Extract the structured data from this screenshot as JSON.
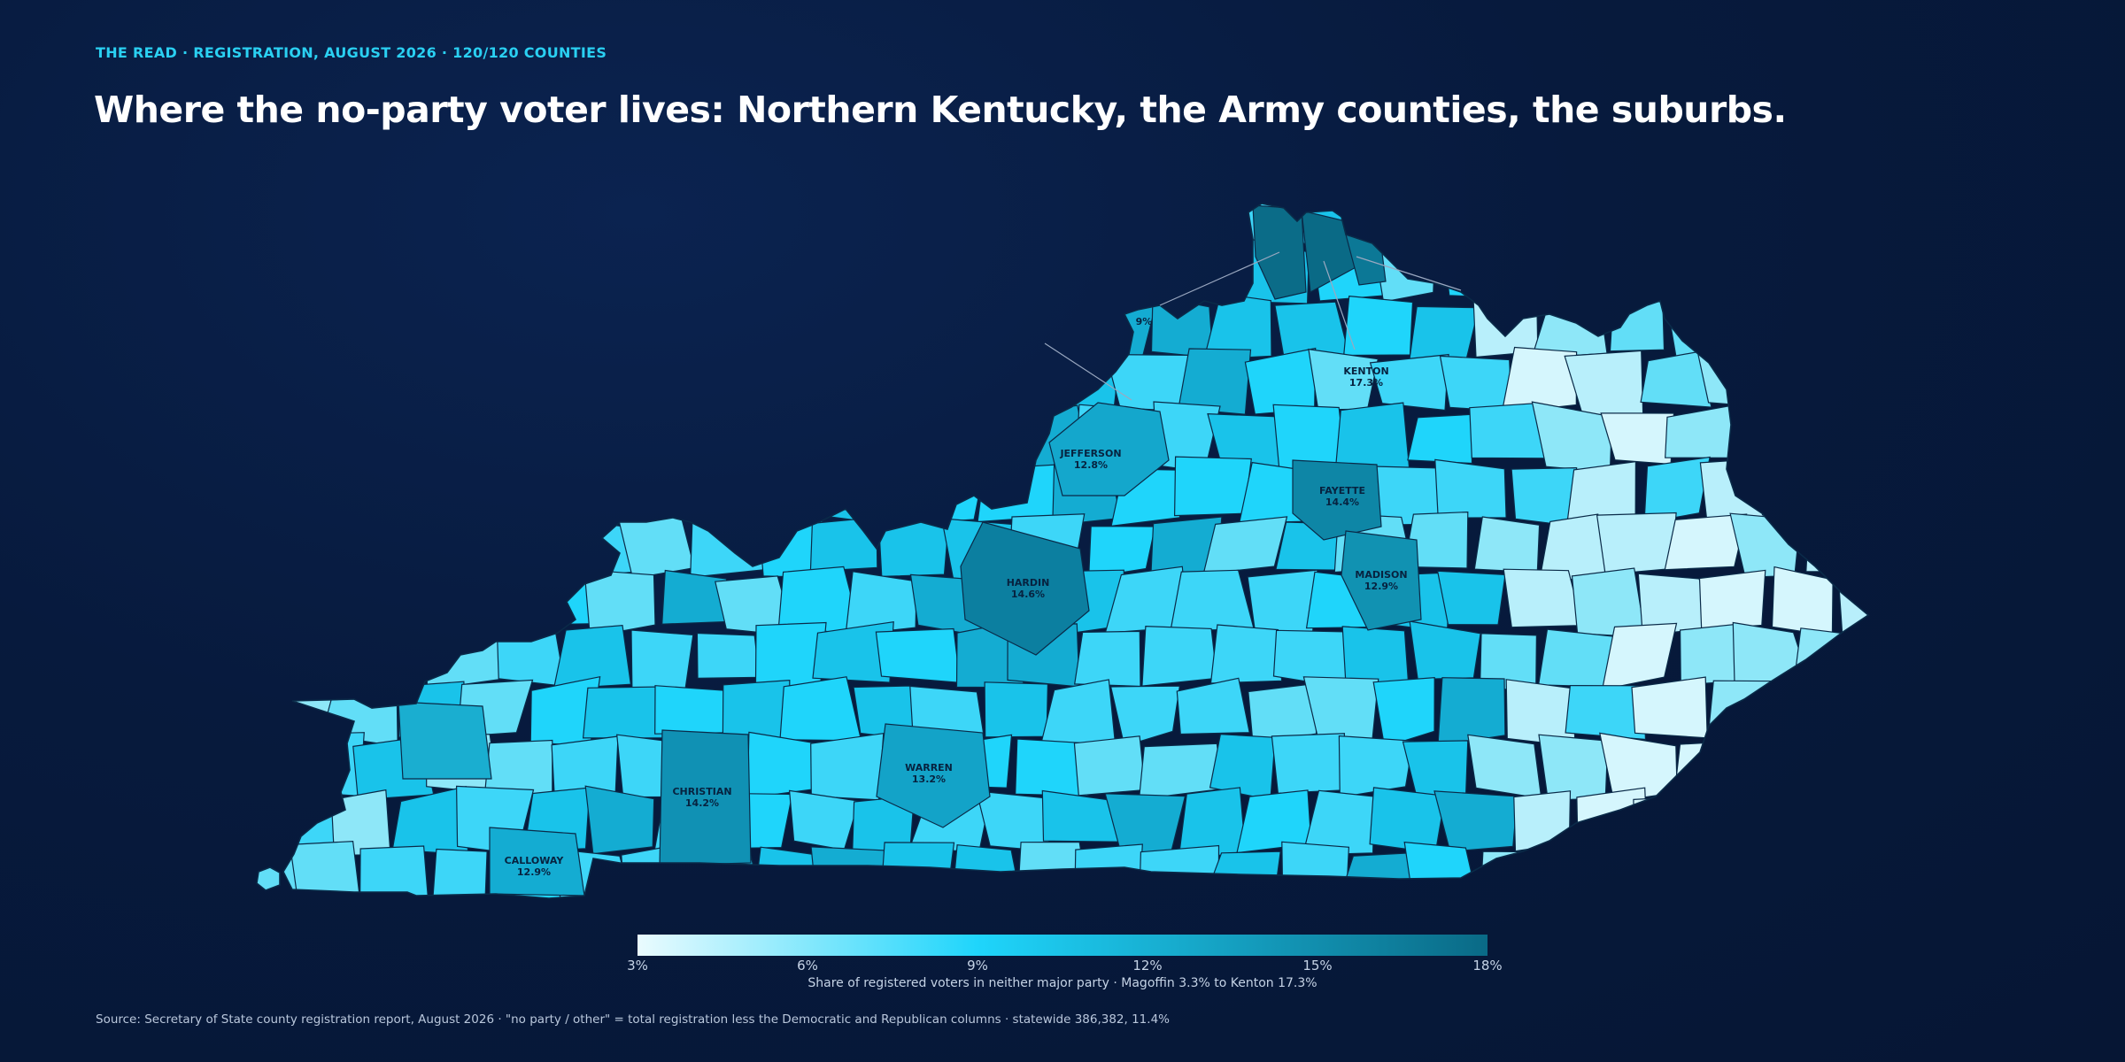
{
  "header": {
    "kicker": "THE READ · REGISTRATION, AUGUST 2026 · 120/120 COUNTIES",
    "headline": "Where the no-party voter lives: Northern Kentucky, the Army counties, the suburbs."
  },
  "map": {
    "region": "Kentucky",
    "labeled_counties": [
      {
        "name": "KENTON",
        "value": "17.3%"
      },
      {
        "name": "JEFFERSON",
        "value": "12.8%"
      },
      {
        "name": "FAYETTE",
        "value": "14.4%"
      },
      {
        "name": "HARDIN",
        "value": "14.6%"
      },
      {
        "name": "MADISON",
        "value": "12.9%"
      },
      {
        "name": "CHRISTIAN",
        "value": "14.2%"
      },
      {
        "name": "WARREN",
        "value": "13.2%"
      },
      {
        "name": "CALLOWAY",
        "value": "12.9%"
      }
    ],
    "cut_label": "9%"
  },
  "legend": {
    "ticks": [
      "3%",
      "6%",
      "9%",
      "12%",
      "15%",
      "18%"
    ],
    "caption": "Share of registered voters in neither major party · Magoffin 3.3% to Kenton 17.3%",
    "min_color": "#eafbfe",
    "mid_color": "#1fd5fb",
    "max_color": "#0a6a86"
  },
  "source": "Source: Secretary of State county registration report, August 2026 · \"no party / other\" = total registration less the Democratic and Republican columns · statewide 386,382, 11.4%"
}
